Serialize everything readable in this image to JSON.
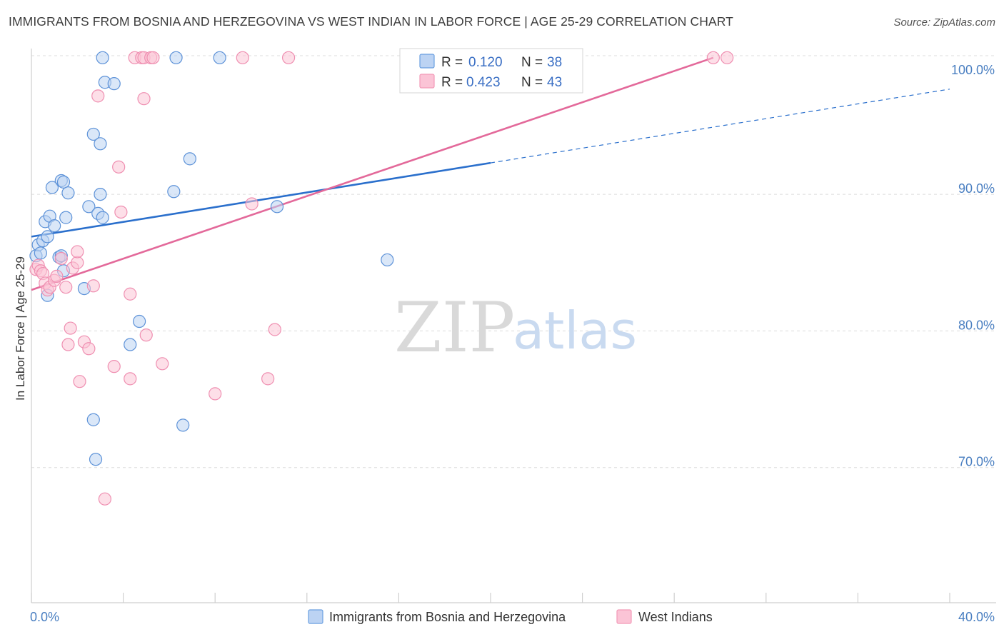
{
  "title": "IMMIGRANTS FROM BOSNIA AND HERZEGOVINA VS WEST INDIAN IN LABOR FORCE | AGE 25-29 CORRELATION CHART",
  "source": "Source: ZipAtlas.com",
  "watermark": {
    "zip": "ZIP",
    "atlas": "atlas"
  },
  "legend": {
    "r_label": "R =",
    "n_label": "N =",
    "rows": [
      {
        "r": "0.120",
        "n": "38"
      },
      {
        "r": "0.423",
        "n": "43"
      }
    ]
  },
  "chart_data": {
    "type": "scatter",
    "title": "IMMIGRANTS FROM BOSNIA AND HERZEGOVINA VS WEST INDIAN IN LABOR FORCE | AGE 25-29 CORRELATION CHART",
    "xlabel": "",
    "ylabel": "In Labor Force | Age 25-29",
    "xlim": [
      0,
      40
    ],
    "ylim": [
      60,
      102
    ],
    "x_tick_labels": [
      "0.0%",
      "40.0%"
    ],
    "y_tick_labels": [
      "70.0%",
      "80.0%",
      "90.0%",
      "100.0%"
    ],
    "y_ticks": [
      70,
      80,
      90,
      100
    ],
    "grid": true,
    "legend_position": "top-center",
    "colors": {
      "bosnia": "#6a9fe0",
      "bosnia_line": "#2a6fcc",
      "westindian": "#f29ab8",
      "westindian_line": "#e3699a"
    },
    "series": [
      {
        "name": "Immigrants from Bosnia and Herzegovina",
        "r": 0.12,
        "n": 38,
        "points": [
          [
            0.2,
            85.5
          ],
          [
            0.3,
            86.3
          ],
          [
            0.4,
            85.7
          ],
          [
            0.5,
            86.6
          ],
          [
            0.6,
            88.0
          ],
          [
            0.7,
            86.9
          ],
          [
            0.8,
            88.4
          ],
          [
            0.7,
            82.6
          ],
          [
            1.0,
            87.7
          ],
          [
            1.2,
            85.4
          ],
          [
            1.3,
            91.0
          ],
          [
            1.4,
            90.9
          ],
          [
            1.4,
            84.4
          ],
          [
            1.3,
            85.5
          ],
          [
            1.5,
            88.3
          ],
          [
            1.6,
            90.1
          ],
          [
            2.3,
            83.1
          ],
          [
            2.5,
            89.1
          ],
          [
            2.9,
            88.6
          ],
          [
            3.0,
            90.0
          ],
          [
            3.1,
            88.3
          ],
          [
            2.7,
            94.4
          ],
          [
            3.0,
            93.7
          ],
          [
            3.2,
            98.2
          ],
          [
            3.6,
            98.1
          ],
          [
            4.7,
            80.7
          ],
          [
            4.3,
            79.0
          ],
          [
            2.7,
            73.5
          ],
          [
            2.8,
            70.6
          ],
          [
            3.1,
            100.0
          ],
          [
            6.3,
            100.0
          ],
          [
            8.2,
            100.0
          ],
          [
            6.2,
            90.2
          ],
          [
            6.9,
            92.6
          ],
          [
            6.6,
            73.1
          ],
          [
            10.7,
            89.1
          ],
          [
            15.5,
            85.2
          ],
          [
            0.9,
            90.5
          ]
        ]
      },
      {
        "name": "West Indians",
        "r": 0.423,
        "n": 43,
        "points": [
          [
            0.2,
            84.5
          ],
          [
            0.3,
            84.8
          ],
          [
            0.4,
            84.4
          ],
          [
            0.5,
            84.2
          ],
          [
            0.6,
            83.5
          ],
          [
            0.7,
            83.0
          ],
          [
            0.8,
            83.2
          ],
          [
            1.0,
            83.7
          ],
          [
            1.1,
            84.0
          ],
          [
            1.3,
            85.3
          ],
          [
            1.8,
            84.6
          ],
          [
            2.0,
            85.0
          ],
          [
            2.0,
            85.8
          ],
          [
            2.7,
            83.3
          ],
          [
            4.3,
            82.7
          ],
          [
            1.7,
            80.2
          ],
          [
            1.6,
            79.0
          ],
          [
            2.3,
            79.2
          ],
          [
            2.5,
            78.7
          ],
          [
            2.1,
            76.3
          ],
          [
            3.6,
            77.4
          ],
          [
            4.3,
            76.5
          ],
          [
            5.0,
            79.7
          ],
          [
            5.7,
            77.6
          ],
          [
            8.0,
            75.4
          ],
          [
            10.3,
            76.5
          ],
          [
            10.6,
            80.1
          ],
          [
            9.6,
            89.3
          ],
          [
            3.9,
            88.7
          ],
          [
            3.8,
            92.0
          ],
          [
            2.9,
            97.2
          ],
          [
            4.9,
            97.0
          ],
          [
            3.2,
            67.7
          ],
          [
            4.5,
            100.0
          ],
          [
            4.8,
            100.0
          ],
          [
            4.9,
            100.0
          ],
          [
            5.2,
            100.0
          ],
          [
            5.3,
            100.0
          ],
          [
            9.2,
            100.0
          ],
          [
            11.2,
            100.0
          ],
          [
            29.7,
            100.0
          ],
          [
            30.3,
            100.0
          ],
          [
            1.5,
            83.2
          ]
        ]
      }
    ],
    "trendlines": [
      {
        "series": "Immigrants from Bosnia and Herzegovina",
        "x0": 0,
        "y0": 86.9,
        "x1": 20,
        "y1": 92.3,
        "dashed_to_x": 40,
        "dashed_to_y": 97.7
      },
      {
        "series": "West Indians",
        "x0": 0,
        "y0": 83.0,
        "x1": 29.7,
        "y1": 100.0
      }
    ]
  },
  "bottom_legend": [
    {
      "label": "Immigrants from Bosnia and Herzegovina"
    },
    {
      "label": "West Indians"
    }
  ]
}
